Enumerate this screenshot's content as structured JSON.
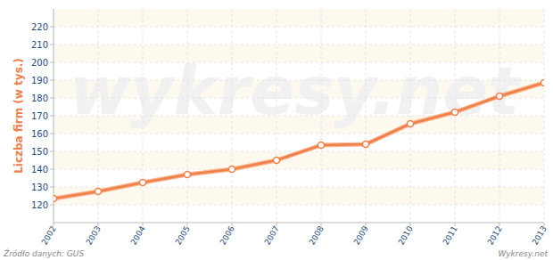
{
  "chart_data": {
    "type": "line",
    "y_label": "Liczba firm (w tys.)",
    "source": "Źródło danych: GUS",
    "credit": "Wykresy.net",
    "watermark": "wykresy.net",
    "x": [
      2002,
      2003,
      2004,
      2005,
      2006,
      2007,
      2008,
      2009,
      2010,
      2011,
      2012,
      2013
    ],
    "values": [
      123.5,
      127.5,
      132.5,
      137,
      140,
      145,
      153.5,
      154,
      165.5,
      172,
      181,
      188.5
    ],
    "color": "#f0804a",
    "marker": "circle",
    "xlim": [
      2002,
      2013
    ],
    "xticks": [
      2002,
      2003,
      2004,
      2005,
      2006,
      2007,
      2008,
      2009,
      2010,
      2011,
      2012,
      2013
    ],
    "ylim": [
      110,
      230
    ],
    "yticks": [
      120,
      130,
      140,
      150,
      160,
      170,
      180,
      190,
      200,
      210,
      220
    ],
    "grid": true
  }
}
